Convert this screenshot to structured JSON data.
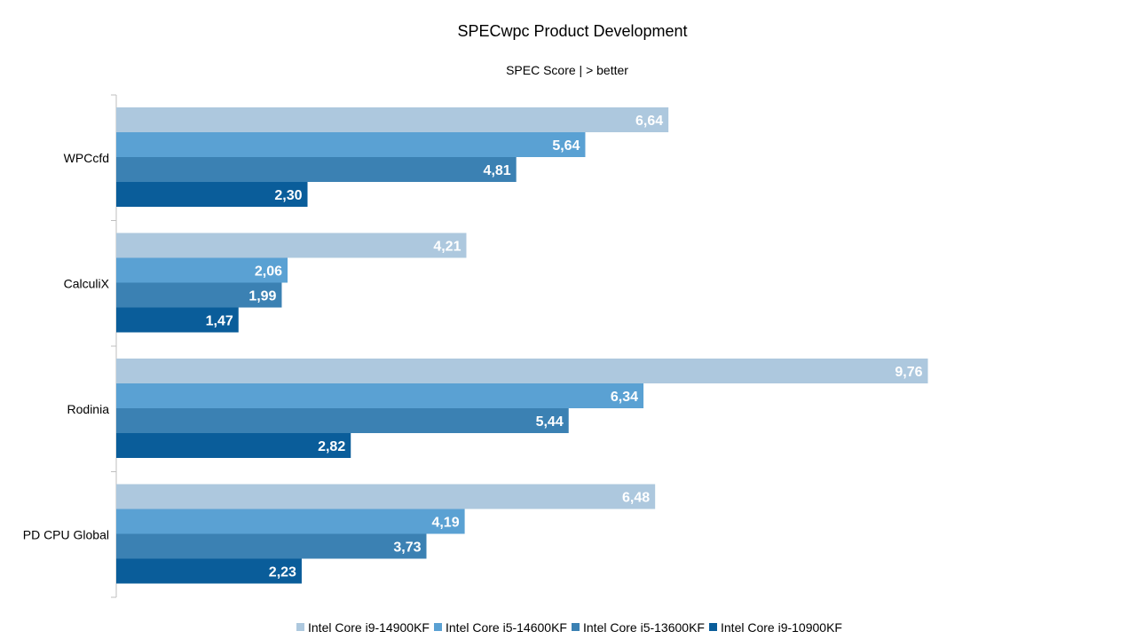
{
  "chart_data": {
    "type": "bar",
    "orientation": "horizontal",
    "title": "SPECwpc Product Development",
    "subtitle": "SPEC Score | > better",
    "categories": [
      "WPCcfd",
      "CalculiX",
      "Rodinia",
      "PD CPU Global"
    ],
    "value_labels": [
      [
        "6,64",
        "5,64",
        "4,81",
        "2,30"
      ],
      [
        "4,21",
        "2,06",
        "1,99",
        "1,47"
      ],
      [
        "9,76",
        "6,34",
        "5,44",
        "2,82"
      ],
      [
        "6,48",
        "4,19",
        "3,73",
        "2,23"
      ]
    ],
    "series": [
      {
        "name": "Intel Core i9-14900KF",
        "color": "#adc8de",
        "values": [
          6.64,
          4.21,
          9.76,
          6.48
        ]
      },
      {
        "name": "Intel Core i5-14600KF",
        "color": "#5aa1d3",
        "values": [
          5.64,
          2.06,
          6.34,
          4.19
        ]
      },
      {
        "name": "Intel Core i5-13600KF",
        "color": "#3b81b3",
        "values": [
          4.81,
          1.99,
          5.44,
          3.73
        ]
      },
      {
        "name": "Intel Core i9-10900KF",
        "color": "#0a5d9a",
        "values": [
          2.3,
          1.47,
          2.82,
          2.23
        ]
      }
    ],
    "xlim": [
      0,
      10
    ],
    "grid": false,
    "legend_position": "bottom"
  }
}
